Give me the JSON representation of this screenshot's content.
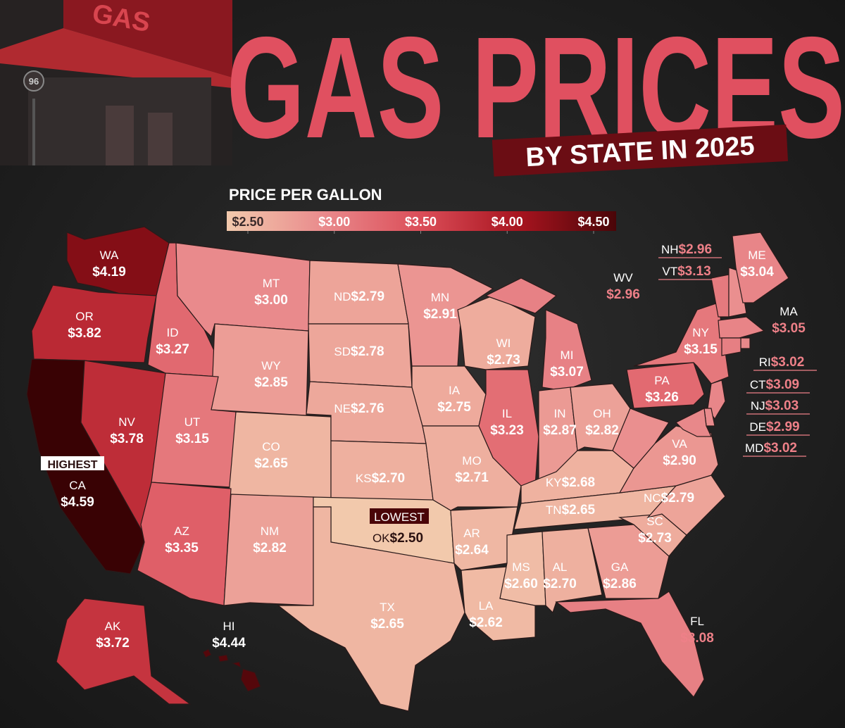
{
  "header": {
    "title": "GAS PRICES",
    "subtitle": "BY STATE IN 2025",
    "sign": "GAS",
    "route": "96"
  },
  "legend": {
    "title": "PRICE PER GALLON",
    "ticks": [
      {
        "value": 2.5,
        "label": "$2.50"
      },
      {
        "value": 3.0,
        "label": "$3.00"
      },
      {
        "value": 3.5,
        "label": "$3.50"
      },
      {
        "value": 4.0,
        "label": "$4.00"
      },
      {
        "value": 4.5,
        "label": "$4.50"
      }
    ],
    "colors": [
      "#f2c9ac",
      "#e98a8c",
      "#db4d58",
      "#a8141f",
      "#4a0508"
    ]
  },
  "annotations": {
    "highest": "HIGHEST",
    "lowest": "LOWEST"
  },
  "states": [
    {
      "abbr": "WA",
      "value": 4.19,
      "label": "$4.19"
    },
    {
      "abbr": "OR",
      "value": 3.82,
      "label": "$3.82"
    },
    {
      "abbr": "CA",
      "value": 4.59,
      "label": "$4.59"
    },
    {
      "abbr": "NV",
      "value": 3.78,
      "label": "$3.78"
    },
    {
      "abbr": "ID",
      "value": 3.27,
      "label": "$3.27"
    },
    {
      "abbr": "MT",
      "value": 3.0,
      "label": "$3.00"
    },
    {
      "abbr": "WY",
      "value": 2.85,
      "label": "$2.85"
    },
    {
      "abbr": "UT",
      "value": 3.15,
      "label": "$3.15"
    },
    {
      "abbr": "CO",
      "value": 2.65,
      "label": "$2.65"
    },
    {
      "abbr": "AZ",
      "value": 3.35,
      "label": "$3.35"
    },
    {
      "abbr": "NM",
      "value": 2.82,
      "label": "$2.82"
    },
    {
      "abbr": "ND",
      "value": 2.79,
      "label": "$2.79"
    },
    {
      "abbr": "SD",
      "value": 2.78,
      "label": "$2.78"
    },
    {
      "abbr": "NE",
      "value": 2.76,
      "label": "$2.76"
    },
    {
      "abbr": "KS",
      "value": 2.7,
      "label": "$2.70"
    },
    {
      "abbr": "OK",
      "value": 2.5,
      "label": "$2.50"
    },
    {
      "abbr": "TX",
      "value": 2.65,
      "label": "$2.65"
    },
    {
      "abbr": "MN",
      "value": 2.91,
      "label": "$2.91"
    },
    {
      "abbr": "IA",
      "value": 2.75,
      "label": "$2.75"
    },
    {
      "abbr": "MO",
      "value": 2.71,
      "label": "$2.71"
    },
    {
      "abbr": "AR",
      "value": 2.64,
      "label": "$2.64"
    },
    {
      "abbr": "LA",
      "value": 2.62,
      "label": "$2.62"
    },
    {
      "abbr": "WI",
      "value": 2.73,
      "label": "$2.73"
    },
    {
      "abbr": "IL",
      "value": 3.23,
      "label": "$3.23"
    },
    {
      "abbr": "MS",
      "value": 2.6,
      "label": "$2.60"
    },
    {
      "abbr": "MI",
      "value": 3.07,
      "label": "$3.07"
    },
    {
      "abbr": "IN",
      "value": 2.87,
      "label": "$2.87"
    },
    {
      "abbr": "KY",
      "value": 2.68,
      "label": "$2.68"
    },
    {
      "abbr": "TN",
      "value": 2.65,
      "label": "$2.65"
    },
    {
      "abbr": "AL",
      "value": 2.7,
      "label": "$2.70"
    },
    {
      "abbr": "OH",
      "value": 2.82,
      "label": "$2.82"
    },
    {
      "abbr": "GA",
      "value": 2.86,
      "label": "$2.86"
    },
    {
      "abbr": "FL",
      "value": 3.08,
      "label": "$3.08"
    },
    {
      "abbr": "SC",
      "value": 2.73,
      "label": "$2.73"
    },
    {
      "abbr": "NC",
      "value": 2.79,
      "label": "$2.79"
    },
    {
      "abbr": "VA",
      "value": 2.9,
      "label": "$2.90"
    },
    {
      "abbr": "WV",
      "value": 2.96,
      "label": "$2.96"
    },
    {
      "abbr": "PA",
      "value": 3.26,
      "label": "$3.26"
    },
    {
      "abbr": "NY",
      "value": 3.15,
      "label": "$3.15"
    },
    {
      "abbr": "VT",
      "value": 3.13,
      "label": "$3.13"
    },
    {
      "abbr": "NH",
      "value": 2.96,
      "label": "$2.96"
    },
    {
      "abbr": "ME",
      "value": 3.04,
      "label": "$3.04"
    },
    {
      "abbr": "MA",
      "value": 3.05,
      "label": "$3.05"
    },
    {
      "abbr": "RI",
      "value": 3.02,
      "label": "$3.02"
    },
    {
      "abbr": "CT",
      "value": 3.09,
      "label": "$3.09"
    },
    {
      "abbr": "NJ",
      "value": 3.03,
      "label": "$3.03"
    },
    {
      "abbr": "DE",
      "value": 2.99,
      "label": "$2.99"
    },
    {
      "abbr": "MD",
      "value": 3.02,
      "label": "$3.02"
    },
    {
      "abbr": "AK",
      "value": 3.72,
      "label": "$3.72"
    },
    {
      "abbr": "HI",
      "value": 4.44,
      "label": "$4.44"
    }
  ]
}
